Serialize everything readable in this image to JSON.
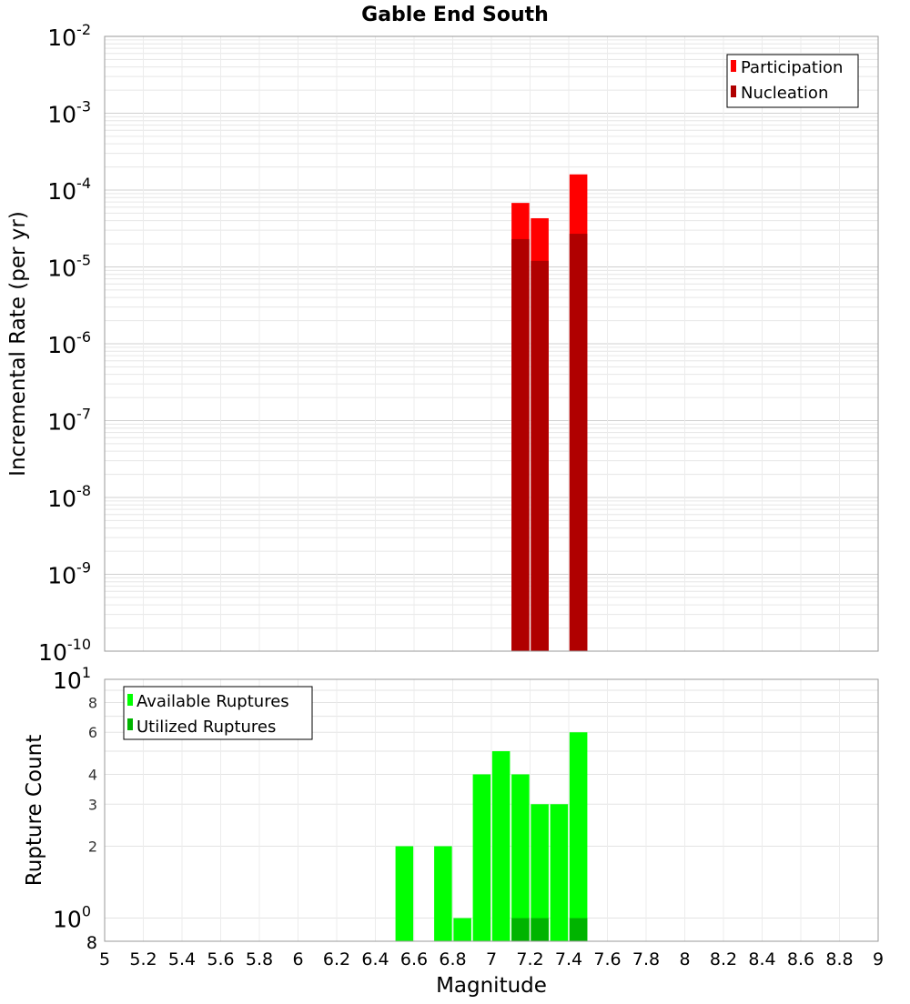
{
  "chart_data": [
    {
      "type": "bar",
      "title": "Gable End South",
      "xlabel": "Magnitude",
      "ylabel": "Incremental Rate (per yr)",
      "yscale": "log",
      "xlim": [
        5,
        9
      ],
      "ylim_exp": [
        -10,
        -2
      ],
      "y_tick_exponents": [
        "-2",
        "-3",
        "-4",
        "-5",
        "-6",
        "-7",
        "-8",
        "-9",
        "-10"
      ],
      "legend_position": "top-right",
      "series": [
        {
          "name": "Participation",
          "color": "#ff0000",
          "x": [
            7.15,
            7.25,
            7.45
          ],
          "values": [
            6.8e-05,
            4.3e-05,
            0.00016
          ]
        },
        {
          "name": "Nucleation",
          "color": "#b00000",
          "x": [
            7.15,
            7.25,
            7.45
          ],
          "values": [
            2.3e-05,
            1.2e-05,
            2.7e-05
          ]
        }
      ]
    },
    {
      "type": "bar",
      "xlabel": "Magnitude",
      "ylabel": "Rupture Count",
      "yscale": "log",
      "xlim": [
        5,
        9
      ],
      "ylim": [
        0.8,
        10
      ],
      "y_major_ticks": [
        {
          "value": 10,
          "base": "10",
          "exp": "1"
        },
        {
          "value": 1,
          "base": "10",
          "exp": "0"
        }
      ],
      "y_minor_ticks": [
        8,
        6,
        4,
        3,
        2
      ],
      "y_bottom_label": "8",
      "x_ticks": [
        "5",
        "5.2",
        "5.4",
        "5.6",
        "5.8",
        "6",
        "6.2",
        "6.4",
        "6.6",
        "6.8",
        "7",
        "7.2",
        "7.4",
        "7.6",
        "7.8",
        "8",
        "8.2",
        "8.4",
        "8.6",
        "8.8",
        "9"
      ],
      "legend_position": "top-left",
      "series": [
        {
          "name": "Available Ruptures",
          "color": "#00ff00",
          "x": [
            6.55,
            6.75,
            6.85,
            6.95,
            7.05,
            7.15,
            7.25,
            7.35,
            7.45
          ],
          "values": [
            2,
            2,
            1,
            4,
            5,
            4,
            3,
            3,
            6
          ]
        },
        {
          "name": "Utilized Ruptures",
          "color": "#00b400",
          "x": [
            7.15,
            7.25,
            7.45
          ],
          "values": [
            1,
            1,
            1
          ]
        }
      ]
    }
  ]
}
